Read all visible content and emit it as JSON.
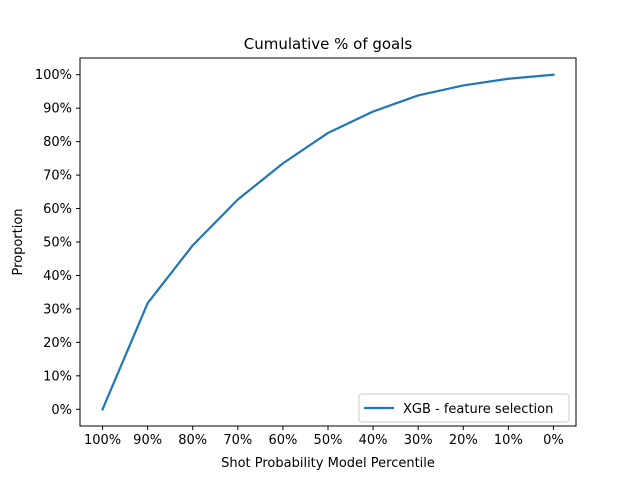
{
  "chart_data": {
    "type": "line",
    "title": "Cumulative % of goals",
    "xlabel": "Shot Probability Model Percentile",
    "ylabel": "Proportion",
    "x_tick_labels": [
      "100%",
      "90%",
      "80%",
      "70%",
      "60%",
      "50%",
      "40%",
      "30%",
      "20%",
      "10%",
      "0%"
    ],
    "y_tick_labels": [
      "0%",
      "10%",
      "20%",
      "30%",
      "40%",
      "50%",
      "60%",
      "70%",
      "80%",
      "90%",
      "100%"
    ],
    "y_ticks": [
      0,
      0.1,
      0.2,
      0.3,
      0.4,
      0.5,
      0.6,
      0.7,
      0.8,
      0.9,
      1.0
    ],
    "ylim": [
      -0.05,
      1.05
    ],
    "grid": false,
    "legend_position": "lower right",
    "series": [
      {
        "name": "XGB - feature selection",
        "color": "#1f77b4",
        "x": [
          "100%",
          "90%",
          "80%",
          "70%",
          "60%",
          "50%",
          "40%",
          "30%",
          "20%",
          "10%",
          "0%"
        ],
        "values": [
          0.0,
          0.317,
          0.49,
          0.627,
          0.735,
          0.826,
          0.89,
          0.938,
          0.968,
          0.988,
          1.0
        ]
      }
    ]
  }
}
